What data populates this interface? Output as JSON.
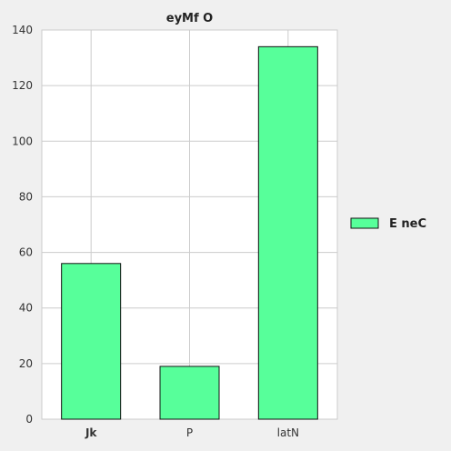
{
  "chart_data": {
    "type": "bar",
    "title": "eyMf O",
    "xlabel": "",
    "ylabel": "",
    "categories": [
      "Jk",
      "P",
      "latN"
    ],
    "series": [
      {
        "name": "E neC",
        "values": [
          56,
          19,
          134
        ],
        "color": "#57ff9a"
      }
    ],
    "ylim": [
      0,
      140
    ],
    "yticks": [
      0,
      20,
      40,
      60,
      80,
      100,
      120,
      140
    ],
    "grid": true,
    "legend_position": "right"
  }
}
